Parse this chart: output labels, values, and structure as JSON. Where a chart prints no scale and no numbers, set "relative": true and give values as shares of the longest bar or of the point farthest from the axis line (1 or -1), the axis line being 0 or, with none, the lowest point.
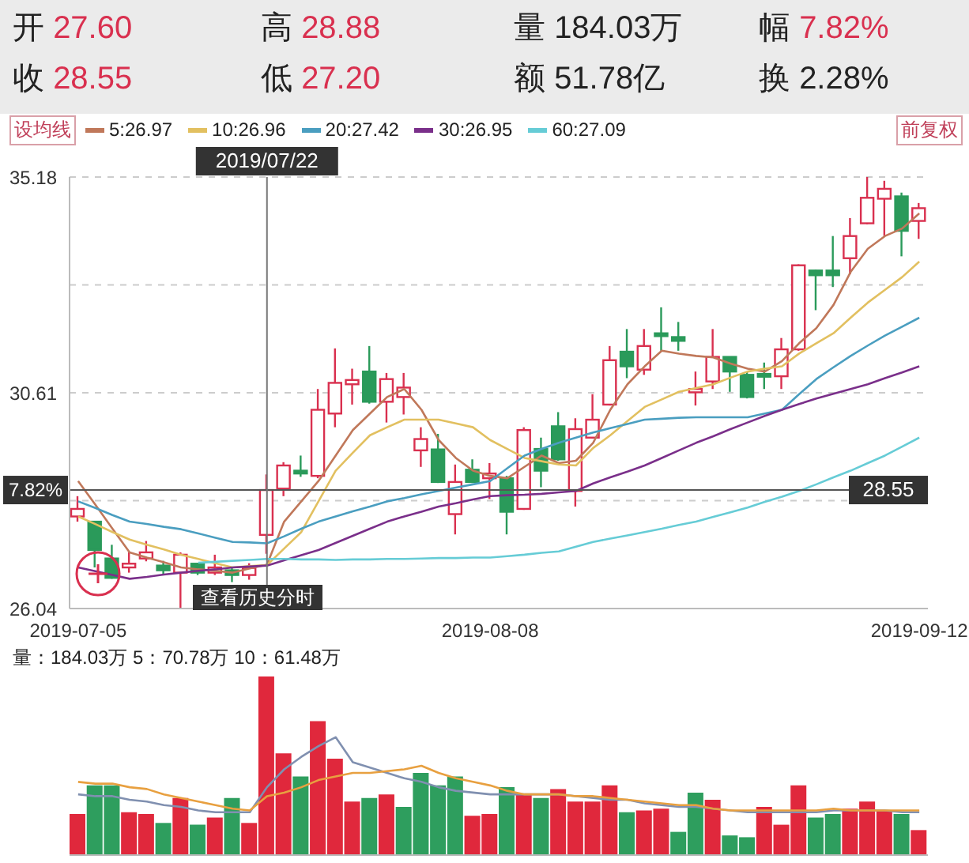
{
  "chart_data": [
    {
      "type": "candlestick",
      "annotations": [
        "开 27.60",
        "高 28.88",
        "量 184.03万",
        "幅 7.82%",
        "收 28.55",
        "低 27.20",
        "额 51.78亿",
        "换 2.28%",
        "设均线",
        "前复权",
        "查看历史分时",
        {
          "text": "7.82%",
          "y": 28.55
        }
      ],
      "categories": [
        "2019-07-05",
        null,
        null,
        null,
        null,
        null,
        null,
        null,
        null,
        null,
        null,
        "2019/07/22",
        null,
        null,
        null,
        null,
        null,
        null,
        null,
        null,
        null,
        null,
        null,
        null,
        "2019-08-08",
        null,
        null,
        null,
        null,
        null,
        null,
        null,
        null,
        null,
        null,
        null,
        null,
        null,
        null,
        null,
        null,
        null,
        null,
        null,
        null,
        null,
        null,
        null,
        null,
        "2019-09-12"
      ],
      "ohlc": [
        [
          27.99,
          28.42,
          27.88,
          28.15
        ],
        [
          27.88,
          27.88,
          26.91,
          27.28
        ],
        [
          27.1,
          27.39,
          26.67,
          26.69
        ],
        [
          26.91,
          27.23,
          26.8,
          26.99
        ],
        [
          27.1,
          27.47,
          27.04,
          27.23
        ],
        [
          26.95,
          27.05,
          26.75,
          26.85
        ],
        [
          26.8,
          27.23,
          26.04,
          27.18
        ],
        [
          26.99,
          26.99,
          26.75,
          26.8
        ],
        [
          26.8,
          27.18,
          26.75,
          26.91
        ],
        [
          26.85,
          26.9,
          26.6,
          26.75
        ],
        [
          26.75,
          27.0,
          26.65,
          26.9
        ],
        [
          27.6,
          28.88,
          27.2,
          28.55
        ],
        [
          28.58,
          29.14,
          28.42,
          29.07
        ],
        [
          28.96,
          29.28,
          28.83,
          28.9
        ],
        [
          28.85,
          30.69,
          28.8,
          30.25
        ],
        [
          30.17,
          31.55,
          29.88,
          30.82
        ],
        [
          30.79,
          31.12,
          30.36,
          30.88
        ],
        [
          31.06,
          31.6,
          30.38,
          30.42
        ],
        [
          30.42,
          31.03,
          29.98,
          30.9
        ],
        [
          30.52,
          31.03,
          30.15,
          30.72
        ],
        [
          29.39,
          29.88,
          29.04,
          29.63
        ],
        [
          29.41,
          29.74,
          28.7,
          28.72
        ],
        [
          28.04,
          29.09,
          27.61,
          28.72
        ],
        [
          28.98,
          29.2,
          28.7,
          28.72
        ],
        [
          28.8,
          29.12,
          28.36,
          28.9
        ],
        [
          28.8,
          28.85,
          27.61,
          28.09
        ],
        [
          28.15,
          29.88,
          28.13,
          29.82
        ],
        [
          29.42,
          29.66,
          28.61,
          28.96
        ],
        [
          29.9,
          30.2,
          29.17,
          29.2
        ],
        [
          28.53,
          30.07,
          28.2,
          29.84
        ],
        [
          29.66,
          30.58,
          29.64,
          30.04
        ],
        [
          30.36,
          31.6,
          30.34,
          31.3
        ],
        [
          31.48,
          31.96,
          30.92,
          31.17
        ],
        [
          31.1,
          31.96,
          30.99,
          31.6
        ],
        [
          31.87,
          32.42,
          31.5,
          31.81
        ],
        [
          31.79,
          32.11,
          31.5,
          31.71
        ],
        [
          30.62,
          31.06,
          30.34,
          30.69
        ],
        [
          30.85,
          31.96,
          30.69,
          31.37
        ],
        [
          31.37,
          31.37,
          30.63,
          31.06
        ],
        [
          30.99,
          31.06,
          30.49,
          30.52
        ],
        [
          31.01,
          31.25,
          30.69,
          30.95
        ],
        [
          30.96,
          31.77,
          30.69,
          31.53
        ],
        [
          31.53,
          33.33,
          31.5,
          33.31
        ],
        [
          33.2,
          33.22,
          32.36,
          33.1
        ],
        [
          33.2,
          33.93,
          32.85,
          33.1
        ],
        [
          33.46,
          34.31,
          33.12,
          33.93
        ],
        [
          34.2,
          35.18,
          34.18,
          34.74
        ],
        [
          34.72,
          35.1,
          33.93,
          34.93
        ],
        [
          34.77,
          34.85,
          33.5,
          34.04
        ],
        [
          34.25,
          34.63,
          33.87,
          34.52
        ]
      ],
      "colors": [
        "#d9304f",
        "#2a9a5a",
        "#2a9a5a",
        "#d9304f",
        "#d9304f",
        "#2a9a5a",
        "#d9304f",
        "#2a9a5a",
        "#d9304f",
        "#2a9a5a",
        "#d9304f",
        "#d9304f",
        "#d9304f",
        "#2a9a5a",
        "#d9304f",
        "#d9304f",
        "#d9304f",
        "#2a9a5a",
        "#d9304f",
        "#d9304f",
        "#d9304f",
        "#2a9a5a",
        "#d9304f",
        "#2a9a5a",
        "#d9304f",
        "#2a9a5a",
        "#d9304f",
        "#2a9a5a",
        "#2a9a5a",
        "#d9304f",
        "#d9304f",
        "#d9304f",
        "#2a9a5a",
        "#d9304f",
        "#2a9a5a",
        "#2a9a5a",
        "#d9304f",
        "#d9304f",
        "#2a9a5a",
        "#2a9a5a",
        "#2a9a5a",
        "#d9304f",
        "#d9304f",
        "#2a9a5a",
        "#2a9a5a",
        "#d9304f",
        "#d9304f",
        "#d9304f",
        "#2a9a5a",
        "#d9304f"
      ],
      "series": [
        {
          "type": "line",
          "name": "5:26.97",
          "color": "#c0785a",
          "values": [
            28.74,
            28.24,
            27.73,
            27.23,
            27.12,
            27.02,
            26.91,
            26.87,
            26.84,
            26.8,
            26.89,
            26.97,
            27.88,
            28.31,
            28.74,
            29.28,
            29.82,
            30.17,
            30.52,
            30.69,
            30.25,
            29.61,
            29.23,
            28.96,
            28.85,
            28.8,
            29.04,
            29.28,
            29.12,
            29.17,
            29.55,
            30.25,
            30.79,
            31.17,
            31.5,
            31.44,
            31.39,
            31.36,
            31.23,
            31.12,
            31.06,
            31.28,
            31.66,
            31.98,
            32.47,
            33.17,
            33.66,
            33.93,
            34.09,
            34.41
          ]
        },
        {
          "type": "line",
          "name": "10:26.96",
          "color": "#e2c060",
          "values": [
            27.99,
            27.83,
            27.66,
            27.5,
            27.39,
            27.29,
            27.18,
            27.09,
            27.0,
            26.91,
            26.94,
            26.96,
            27.31,
            27.66,
            28.31,
            28.96,
            29.34,
            29.71,
            29.88,
            30.04,
            30.04,
            30.04,
            29.96,
            29.88,
            29.61,
            29.42,
            29.23,
            29.16,
            29.09,
            29.07,
            29.44,
            29.71,
            30.01,
            30.31,
            30.47,
            30.63,
            30.71,
            30.79,
            30.93,
            31.06,
            31.12,
            31.17,
            31.44,
            31.66,
            31.87,
            32.2,
            32.52,
            32.79,
            33.06,
            33.39
          ]
        },
        {
          "type": "line",
          "name": "20:27.42",
          "color": "#4a9ec0",
          "values": [
            28.31,
            28.17,
            28.02,
            27.88,
            27.83,
            27.77,
            27.72,
            27.63,
            27.54,
            27.45,
            27.44,
            27.42,
            27.57,
            27.73,
            27.88,
            27.99,
            28.1,
            28.2,
            28.31,
            28.38,
            28.46,
            28.53,
            28.6,
            28.67,
            28.74,
            29.01,
            29.28,
            29.42,
            29.55,
            29.66,
            29.77,
            29.86,
            29.95,
            30.04,
            30.06,
            30.08,
            30.09,
            30.09,
            30.09,
            30.09,
            30.17,
            30.25,
            30.58,
            30.9,
            31.15,
            31.39,
            31.61,
            31.82,
            32.01,
            32.2
          ]
        },
        {
          "type": "line",
          "name": "30:26.95",
          "color": "#7a2f8a",
          "values": [
            26.91,
            26.83,
            26.75,
            26.67,
            26.71,
            26.76,
            26.8,
            26.84,
            26.87,
            26.91,
            26.93,
            26.95,
            27.06,
            27.17,
            27.28,
            27.43,
            27.58,
            27.73,
            27.88,
            27.99,
            28.09,
            28.2,
            28.27,
            28.35,
            28.42,
            28.44,
            28.45,
            28.47,
            28.5,
            28.53,
            28.69,
            28.82,
            28.94,
            29.07,
            29.23,
            29.39,
            29.55,
            29.69,
            29.84,
            29.98,
            30.12,
            30.25,
            30.37,
            30.49,
            30.59,
            30.69,
            30.79,
            30.92,
            31.04,
            31.17
          ]
        },
        {
          "type": "line",
          "name": "60:27.09",
          "color": "#66ccd6",
          "values": [
            null,
            null,
            null,
            null,
            null,
            null,
            null,
            27.01,
            27.03,
            27.05,
            27.07,
            27.09,
            27.09,
            27.08,
            27.08,
            27.07,
            27.08,
            27.08,
            27.09,
            27.09,
            27.1,
            27.11,
            27.11,
            27.12,
            27.12,
            27.15,
            27.18,
            27.22,
            27.25,
            27.35,
            27.45,
            27.52,
            27.59,
            27.66,
            27.73,
            27.81,
            27.88,
            27.98,
            28.08,
            28.18,
            28.3,
            28.41,
            28.53,
            28.67,
            28.82,
            28.96,
            29.12,
            29.28,
            29.47,
            29.66
          ]
        }
      ],
      "ylim": [
        26.04,
        35.18
      ],
      "yticks": [
        35.18,
        {
          "value": 32.895,
          "label": null
        },
        30.61,
        {
          "value": 28.325,
          "label": null
        },
        26.04
      ],
      "grid": "y",
      "legend": "top left",
      "ref_lines": [
        {
          "axis": "y",
          "value": 28.55,
          "label": "28.55"
        },
        {
          "axis": "x",
          "value": "2019/07/22",
          "label": "2019/07/22"
        }
      ]
    },
    {
      "type": "bar",
      "title": "量：184.03万 5：70.78万 10：61.48万",
      "relative": true,
      "tick_labels": false,
      "categories": [
        "2019-07-05",
        null,
        null,
        null,
        null,
        null,
        null,
        null,
        null,
        null,
        null,
        "2019/07/22",
        null,
        null,
        null,
        null,
        null,
        null,
        null,
        null,
        null,
        null,
        null,
        null,
        "2019-08-08",
        null,
        null,
        null,
        null,
        null,
        null,
        null,
        null,
        null,
        null,
        null,
        null,
        null,
        null,
        null,
        null,
        null,
        null,
        null,
        null,
        null,
        null,
        null,
        null,
        "2019-09-12"
      ],
      "series": [
        {
          "values": [
            0.23,
            0.39,
            0.39,
            0.24,
            0.23,
            0.18,
            0.32,
            0.17,
            0.21,
            0.32,
            0.18,
            1,
            0.57,
            0.44,
            0.75,
            0.54,
            0.3,
            0.32,
            0.34,
            0.27,
            0.46,
            0.39,
            0.44,
            0.22,
            0.23,
            0.38,
            0.34,
            0.32,
            0.37,
            0.3,
            0.3,
            0.39,
            0.24,
            0.25,
            0.26,
            0.13,
            0.35,
            0.31,
            0.11,
            0.1,
            0.27,
            0.17,
            0.39,
            0.21,
            0.23,
            0.26,
            0.3,
            0.25,
            0.23,
            0.14
          ],
          "colors": [
            "#e0283c",
            "#2e9e5e",
            "#2e9e5e",
            "#e0283c",
            "#e0283c",
            "#2e9e5e",
            "#e0283c",
            "#2e9e5e",
            "#e0283c",
            "#2e9e5e",
            "#e0283c",
            "#e0283c",
            "#e0283c",
            "#2e9e5e",
            "#e0283c",
            "#e0283c",
            "#e0283c",
            "#2e9e5e",
            "#e0283c",
            "#2e9e5e",
            "#2e9e5e",
            "#2e9e5e",
            "#2e9e5e",
            "#e0283c",
            "#e0283c",
            "#2e9e5e",
            "#e0283c",
            "#2e9e5e",
            "#e0283c",
            "#e0283c",
            "#e0283c",
            "#e0283c",
            "#2e9e5e",
            "#e0283c",
            "#e0283c",
            "#2e9e5e",
            "#2e9e5e",
            "#e0283c",
            "#2e9e5e",
            "#2e9e5e",
            "#e0283c",
            "#e0283c",
            "#e0283c",
            "#2e9e5e",
            "#2e9e5e",
            "#e0283c",
            "#e0283c",
            "#e0283c",
            "#2e9e5e",
            "#e0283c"
          ]
        },
        {
          "type": "line",
          "color": "#8090b0",
          "values": [
            0.34,
            0.33,
            0.33,
            0.31,
            0.3,
            0.28,
            0.27,
            0.25,
            0.24,
            0.24,
            0.24,
            0.38,
            0.48,
            0.55,
            0.61,
            0.66,
            0.52,
            0.49,
            0.46,
            0.43,
            0.41,
            0.38,
            0.36,
            0.35,
            0.34,
            0.34,
            0.34,
            0.34,
            0.34,
            0.33,
            0.32,
            0.31,
            0.31,
            0.29,
            0.28,
            0.27,
            0.27,
            0.26,
            0.25,
            0.24,
            0.24,
            0.24,
            0.24,
            0.24,
            0.25,
            0.25,
            0.25,
            0.25,
            0.24,
            0.24
          ]
        },
        {
          "type": "line",
          "color": "#e8a040",
          "values": [
            0.41,
            0.4,
            0.4,
            0.38,
            0.37,
            0.34,
            0.32,
            0.3,
            0.28,
            0.26,
            0.25,
            0.33,
            0.35,
            0.38,
            0.42,
            0.44,
            0.46,
            0.46,
            0.47,
            0.48,
            0.5,
            0.46,
            0.43,
            0.41,
            0.39,
            0.36,
            0.34,
            0.34,
            0.34,
            0.33,
            0.33,
            0.32,
            0.31,
            0.3,
            0.29,
            0.28,
            0.28,
            0.26,
            0.25,
            0.25,
            0.25,
            0.25,
            0.25,
            0.25,
            0.26,
            0.25,
            0.25,
            0.25,
            0.25,
            0.25
          ]
        }
      ]
    }
  ]
}
